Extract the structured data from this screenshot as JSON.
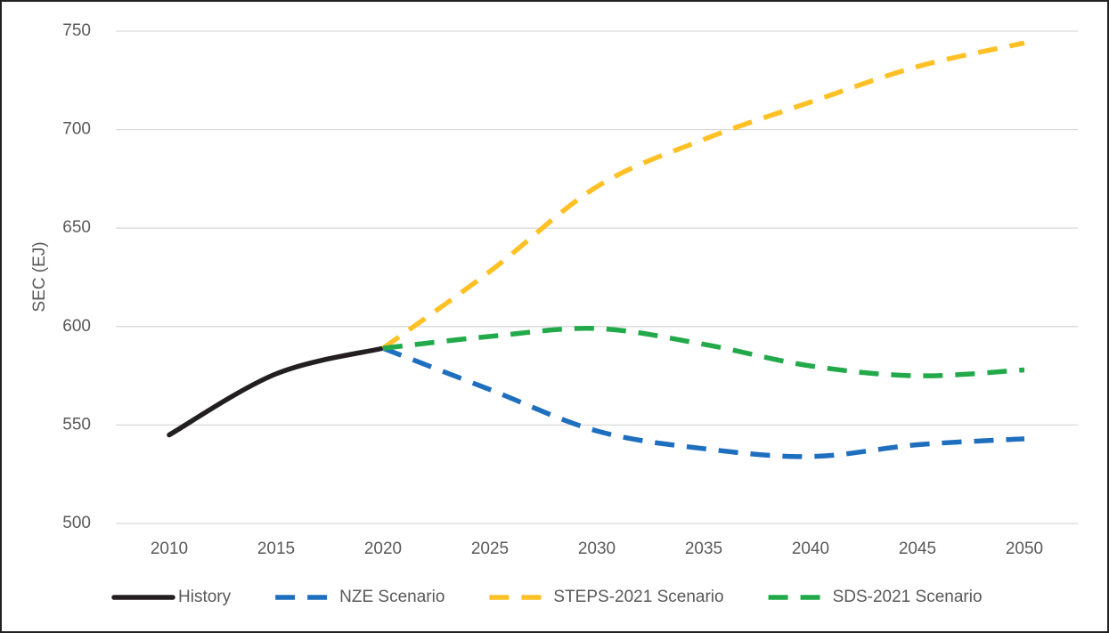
{
  "chart_data": {
    "type": "line",
    "y_label": "SEC (EJ)",
    "x": [
      2010,
      2015,
      2020,
      2025,
      2030,
      2035,
      2040,
      2045,
      2050
    ],
    "xlim": [
      2007.5,
      2052.5
    ],
    "xticks": [
      2010,
      2015,
      2020,
      2025,
      2030,
      2035,
      2040,
      2045,
      2050
    ],
    "ylim": [
      500,
      750
    ],
    "yticks": [
      500,
      550,
      600,
      650,
      700,
      750
    ],
    "grid": true,
    "smooth": true,
    "legend": "bottom",
    "series": [
      {
        "name": "History",
        "color": "#231f20",
        "dashed": false,
        "values": [
          545,
          576,
          589,
          null,
          null,
          null,
          null,
          null,
          null
        ]
      },
      {
        "name": "NZE Scenario",
        "color": "#1f6fbf",
        "dashed": true,
        "values": [
          null,
          null,
          589,
          568,
          547,
          538,
          534,
          540,
          543
        ]
      },
      {
        "name": "STEPS-2021 Scenario",
        "color": "#ffc125",
        "dashed": true,
        "values": [
          null,
          null,
          589,
          628,
          671,
          695,
          714,
          732,
          744
        ]
      },
      {
        "name": "SDS-2021 Scenario",
        "color": "#22aa4a",
        "dashed": true,
        "values": [
          null,
          null,
          589,
          595,
          599,
          591,
          580,
          575,
          578
        ]
      }
    ]
  }
}
